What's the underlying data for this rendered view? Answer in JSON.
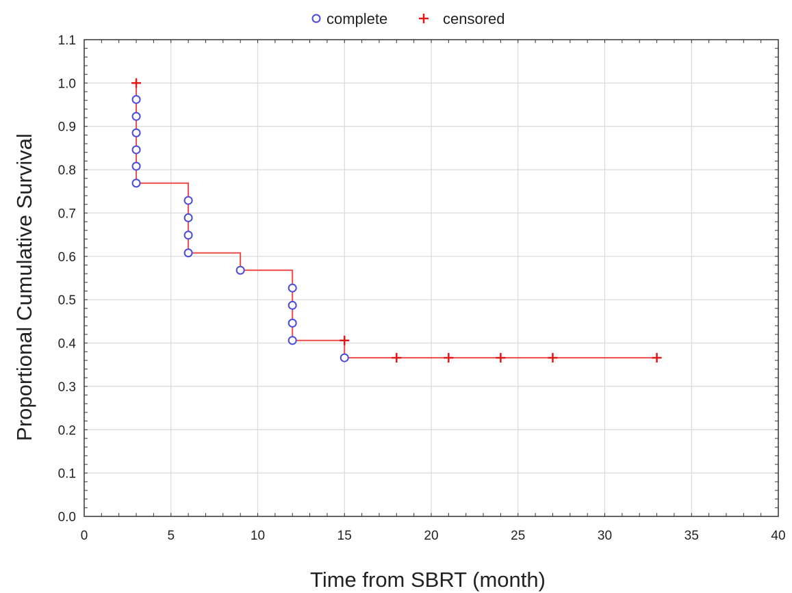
{
  "chart_data": {
    "type": "line",
    "subtype": "kaplan-meier-step",
    "xlabel": "Time from SBRT (month)",
    "ylabel": "Proportional Cumulative Survival",
    "xlim": [
      0,
      40
    ],
    "ylim": [
      0,
      1.1
    ],
    "x_ticks": [
      "0",
      "5",
      "10",
      "15",
      "20",
      "25",
      "30",
      "35",
      "40"
    ],
    "y_ticks": [
      "0.0",
      "0.1",
      "0.2",
      "0.3",
      "0.4",
      "0.5",
      "0.6",
      "0.7",
      "0.8",
      "0.9",
      "1.0",
      "1.1"
    ],
    "grid": true,
    "legend_position": "top-center",
    "legend": [
      {
        "label": "complete",
        "marker": "circle",
        "color": "#4a4ae0"
      },
      {
        "label": "censored",
        "marker": "plus",
        "color": "#e01818"
      }
    ],
    "step_curve": {
      "color": "#ee4a4a",
      "x": [
        3,
        6,
        9,
        12,
        15,
        33
      ],
      "y": [
        1.0,
        0.769,
        0.608,
        0.568,
        0.406,
        0.366
      ]
    },
    "complete_points": {
      "x": [
        3,
        3,
        3,
        3,
        3,
        3,
        6,
        6,
        6,
        6,
        9,
        12,
        12,
        12,
        12,
        15
      ],
      "y": [
        0.962,
        0.923,
        0.885,
        0.846,
        0.808,
        0.769,
        0.729,
        0.689,
        0.649,
        0.608,
        0.568,
        0.527,
        0.487,
        0.446,
        0.406,
        0.366
      ]
    },
    "censored_points": {
      "x": [
        3,
        15,
        18,
        21,
        24,
        27,
        33
      ],
      "y": [
        1.0,
        0.406,
        0.366,
        0.366,
        0.366,
        0.366,
        0.366
      ]
    }
  }
}
